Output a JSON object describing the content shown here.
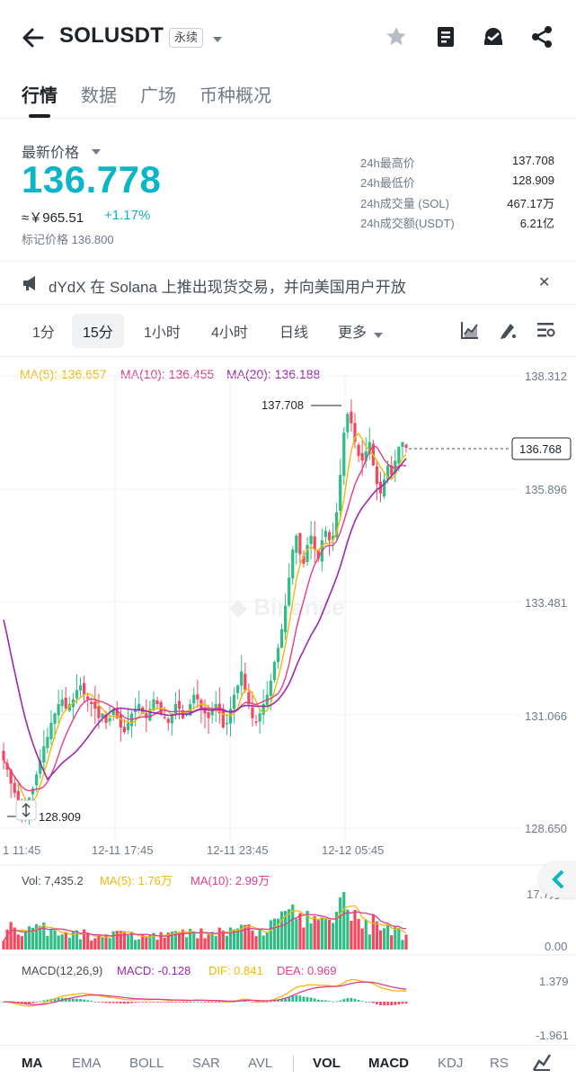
{
  "header": {
    "title": "SOLUSDT",
    "badge": "永续"
  },
  "tabs": [
    {
      "label": "行情",
      "active": true
    },
    {
      "label": "数据",
      "active": false
    },
    {
      "label": "广场",
      "active": false
    },
    {
      "label": "币种概况",
      "active": false
    }
  ],
  "price_info": {
    "label": "最新价格",
    "last_price": "136.778",
    "cny_value": "≈￥965.51",
    "change": "+1.17%",
    "mark_price": "标记价格 136.800",
    "price_color": "#0ab5c6"
  },
  "stats": [
    {
      "label": "24h最高价",
      "value": "137.708"
    },
    {
      "label": "24h最低价",
      "value": "128.909"
    },
    {
      "label": "24h成交量 (SOL)",
      "value": "467.17万"
    },
    {
      "label": "24h成交额(USDT)",
      "value": "6.21亿"
    }
  ],
  "announcement": {
    "text": "dYdX 在 Solana 上推出现货交易，并向美国用户开放"
  },
  "timeframes": {
    "items": [
      "1分",
      "15分",
      "1小时",
      "4小时",
      "日线",
      "更多"
    ],
    "active": "15分"
  },
  "ma_legend": {
    "ma5": "MA(5): 136.657",
    "ma10": "MA(10): 136.455",
    "ma20": "MA(20): 136.188"
  },
  "colors": {
    "up": "#0ecb81",
    "down": "#f6465d",
    "candle_up": "#2ebd85",
    "candle_down": "#f6465d",
    "ma5": "#f0b90b",
    "ma10": "#e03d8c",
    "ma20": "#9c27b0",
    "dif": "#f0b90b",
    "dea": "#e03d8c"
  },
  "chart_data": {
    "type": "candlestick",
    "y_axis_ticks": [
      "138.312",
      "135.896",
      "133.481",
      "131.066",
      "128.650"
    ],
    "ylim": [
      128.65,
      138.312
    ],
    "x_axis_ticks": [
      "1 11:45",
      "12-11 17:45",
      "12-11 23:45",
      "12-12 05:45"
    ],
    "high_label": "137.708",
    "low_label": "128.909",
    "current_price_label": "136.768",
    "close_series": [
      130.1,
      129.9,
      129.6,
      129.4,
      129.2,
      129.0,
      129.1,
      129.3,
      129.5,
      129.8,
      130.1,
      130.4,
      130.6,
      130.9,
      131.1,
      131.3,
      131.4,
      131.2,
      131.3,
      131.4,
      131.6,
      131.7,
      131.5,
      131.4,
      131.3,
      131.2,
      131.0,
      131.1,
      130.9,
      131.0,
      131.2,
      131.0,
      130.8,
      130.7,
      130.9,
      131.1,
      131.2,
      131.3,
      131.1,
      131.0,
      131.2,
      131.4,
      131.3,
      131.1,
      131.0,
      130.9,
      131.1,
      131.3,
      131.2,
      131.0,
      131.1,
      131.3,
      131.5,
      131.4,
      131.2,
      131.1,
      131.0,
      131.2,
      131.3,
      131.1,
      130.8,
      130.9,
      131.2,
      131.5,
      131.7,
      132.0,
      131.6,
      131.3,
      131.0,
      130.9,
      131.1,
      131.3,
      131.5,
      131.8,
      132.2,
      132.5,
      132.9,
      133.4,
      134.0,
      134.6,
      134.9,
      134.5,
      134.3,
      134.7,
      134.9,
      134.6,
      134.4,
      134.8,
      135.0,
      134.8,
      134.9,
      135.4,
      136.2,
      137.1,
      137.5,
      137.3,
      136.9,
      136.6,
      136.5,
      136.7,
      136.9,
      136.4,
      136.0,
      135.8,
      136.1,
      136.4,
      136.2,
      136.5,
      136.8,
      136.9,
      136.78
    ],
    "volume": {
      "label": "Vol: 7,435.2",
      "ma5": "MA(5): 1.76万",
      "ma10": "MA(10): 2.99万",
      "y_ticks": [
        "17.7万",
        "0.00"
      ]
    },
    "macd": {
      "label": "MACD(12,26,9)",
      "macd": "MACD: -0.128",
      "dif": "DIF: 0.841",
      "dea": "DEA: 0.969",
      "y_ticks": [
        "1.379",
        "-1.961"
      ]
    }
  },
  "bottom_tabs": {
    "items": [
      "MA",
      "EMA",
      "BOLL",
      "SAR",
      "AVL",
      "VOL",
      "MACD",
      "KDJ",
      "RS"
    ],
    "active": [
      "MA",
      "VOL",
      "MACD"
    ]
  }
}
